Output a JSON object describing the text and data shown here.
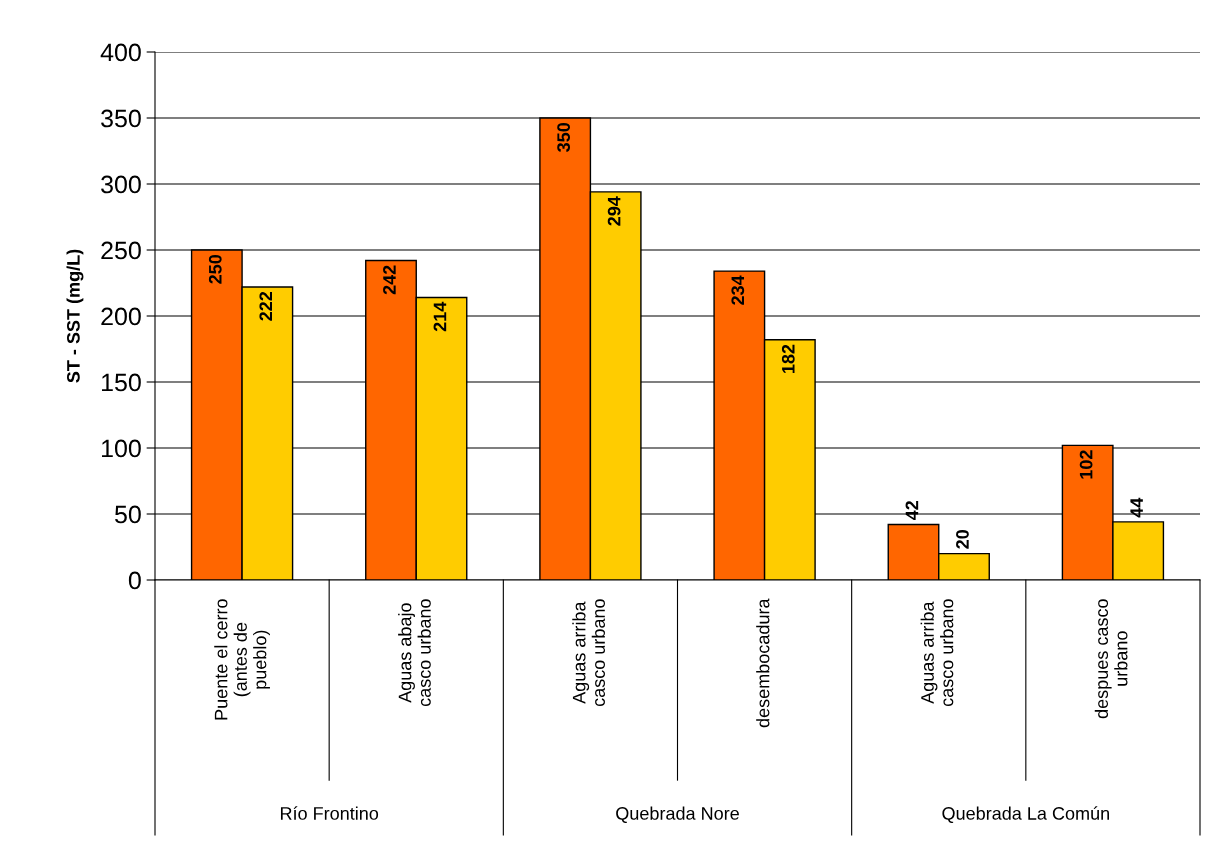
{
  "chart_data": {
    "type": "bar",
    "ylabel": "ST - SST (mg/L)",
    "categories": [
      "Puente el cerro\n(antes de\npueblo)",
      "Aguas abajo\ncasco urbano",
      "Aguas arriba\ncasco urbano",
      "desembocadura",
      "Aguas arriba\ncasco urbano",
      "despues casco\nurbano"
    ],
    "series": [
      {
        "color": "#ff6600",
        "values": [
          250,
          242,
          350,
          234,
          42,
          102
        ]
      },
      {
        "color": "#ffcc00",
        "values": [
          222,
          214,
          294,
          182,
          20,
          44
        ]
      }
    ],
    "annotations": [
      "Río Frontino",
      "Quebrada Nore",
      "Quebrada La Común"
    ],
    "ylim": [
      0,
      400
    ],
    "yticks": [
      0,
      50,
      100,
      150,
      200,
      250,
      300,
      350,
      400
    ],
    "grid": "y",
    "data_labels": true
  }
}
